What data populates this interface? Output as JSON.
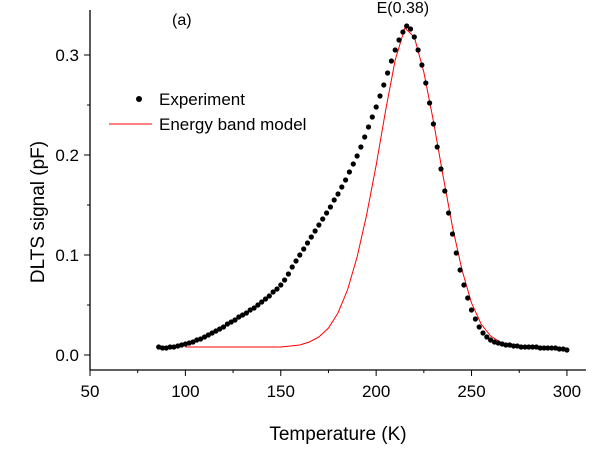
{
  "chart_data": {
    "type": "scatter",
    "panel_label": "(a)",
    "xlabel": "Temperature (K)",
    "ylabel": "DLTS signal (pF)",
    "xlim": [
      50,
      310
    ],
    "ylim": [
      -0.015,
      0.345
    ],
    "xticks": [
      50,
      100,
      150,
      200,
      250,
      300
    ],
    "yticks": [
      0.0,
      0.1,
      0.2,
      0.3
    ],
    "ytick_labels": [
      "0.0",
      "0.1",
      "0.2",
      "0.3"
    ],
    "grid": false,
    "legend_position": "upper-left",
    "annotation": {
      "text": "E(0.38)",
      "x": 214,
      "y": 0.33
    },
    "series": [
      {
        "name": "Experiment",
        "kind": "scatter",
        "color": "#000000",
        "x": [
          86,
          88,
          90,
          92,
          94,
          96,
          98,
          100,
          102,
          104,
          106,
          108,
          110,
          112,
          114,
          116,
          118,
          120,
          122,
          124,
          126,
          128,
          130,
          132,
          134,
          136,
          138,
          140,
          142,
          144,
          146,
          148,
          150,
          152,
          154,
          156,
          158,
          160,
          162,
          164,
          166,
          168,
          170,
          172,
          174,
          176,
          178,
          180,
          182,
          184,
          186,
          188,
          190,
          192,
          194,
          196,
          198,
          200,
          202,
          204,
          206,
          208,
          210,
          212,
          214,
          216,
          218,
          220,
          222,
          224,
          226,
          228,
          230,
          232,
          234,
          236,
          238,
          240,
          242,
          244,
          246,
          248,
          250,
          252,
          254,
          256,
          258,
          260,
          262,
          264,
          266,
          268,
          270,
          272,
          274,
          276,
          278,
          280,
          282,
          284,
          286,
          288,
          290,
          292,
          294,
          296,
          298,
          300
        ],
        "y": [
          0.008,
          0.007,
          0.007,
          0.008,
          0.008,
          0.009,
          0.01,
          0.011,
          0.012,
          0.013,
          0.015,
          0.016,
          0.018,
          0.02,
          0.022,
          0.024,
          0.026,
          0.028,
          0.031,
          0.033,
          0.035,
          0.038,
          0.04,
          0.042,
          0.045,
          0.047,
          0.05,
          0.053,
          0.056,
          0.059,
          0.063,
          0.066,
          0.07,
          0.075,
          0.081,
          0.088,
          0.094,
          0.1,
          0.106,
          0.112,
          0.118,
          0.124,
          0.13,
          0.136,
          0.142,
          0.148,
          0.155,
          0.161,
          0.168,
          0.175,
          0.183,
          0.191,
          0.199,
          0.208,
          0.218,
          0.228,
          0.238,
          0.248,
          0.259,
          0.27,
          0.282,
          0.294,
          0.305,
          0.315,
          0.323,
          0.329,
          0.326,
          0.318,
          0.305,
          0.29,
          0.272,
          0.252,
          0.231,
          0.208,
          0.186,
          0.164,
          0.142,
          0.121,
          0.102,
          0.085,
          0.07,
          0.057,
          0.045,
          0.036,
          0.028,
          0.022,
          0.018,
          0.015,
          0.013,
          0.012,
          0.011,
          0.01,
          0.01,
          0.009,
          0.009,
          0.008,
          0.008,
          0.008,
          0.008,
          0.008,
          0.007,
          0.007,
          0.007,
          0.007,
          0.007,
          0.006,
          0.006,
          0.005
        ]
      },
      {
        "name": "Energy band model",
        "kind": "line",
        "color": "#ff0000",
        "x": [
          100,
          150,
          160,
          165,
          170,
          175,
          180,
          185,
          190,
          195,
          200,
          205,
          210,
          215,
          220,
          225,
          230,
          235,
          240,
          245,
          250,
          255,
          260,
          265,
          270,
          280,
          290,
          300
        ],
        "y": [
          0.008,
          0.008,
          0.01,
          0.013,
          0.018,
          0.027,
          0.042,
          0.065,
          0.098,
          0.14,
          0.19,
          0.245,
          0.295,
          0.327,
          0.318,
          0.283,
          0.234,
          0.18,
          0.128,
          0.085,
          0.052,
          0.031,
          0.019,
          0.013,
          0.01,
          0.008,
          0.007,
          0.007
        ]
      }
    ]
  }
}
